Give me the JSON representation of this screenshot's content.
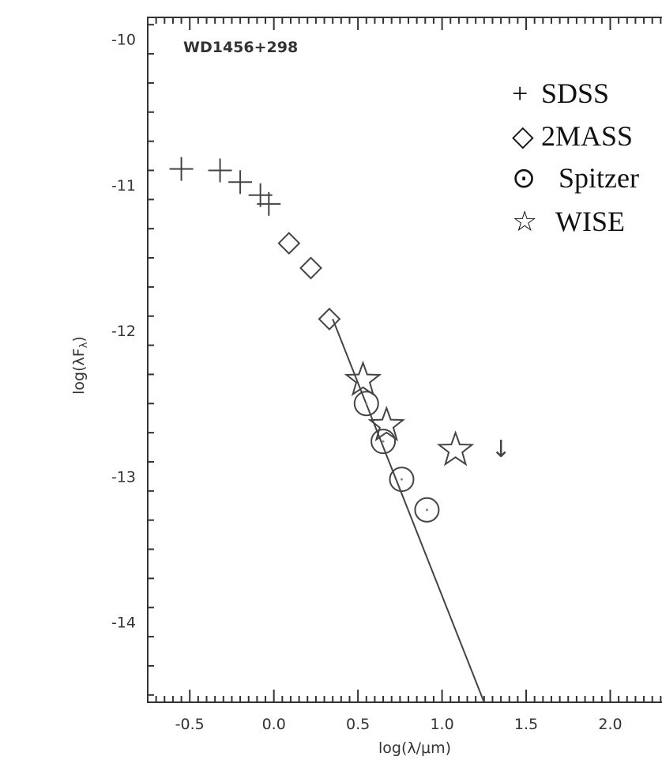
{
  "chart_data": {
    "type": "scatter",
    "annotation": "WD1456+298",
    "xlabel": "log(λ/μm)",
    "ylabel": "log(λF",
    "ylabel_sub": "λ",
    "ylabel_close": ")",
    "xlim": [
      -0.75,
      2.35
    ],
    "ylim": [
      -14.55,
      -9.85
    ],
    "x_ticks": [
      -0.5,
      0.0,
      0.5,
      1.0,
      1.5,
      2.0
    ],
    "x_tick_labels": [
      "-0.5",
      "0.0",
      "0.5",
      "1.0",
      "1.5",
      "2.0"
    ],
    "y_ticks": [
      -10,
      -11,
      -12,
      -13,
      -14
    ],
    "y_tick_labels": [
      "-10",
      "-11",
      "-12",
      "-13",
      "-14"
    ],
    "series": [
      {
        "name": "SDSS",
        "marker": "plus",
        "x": [
          -0.55,
          -0.32,
          -0.2,
          -0.08,
          -0.03
        ],
        "y": [
          -10.89,
          -10.9,
          -10.98,
          -11.07,
          -11.13
        ]
      },
      {
        "name": "2MASS",
        "marker": "diamond",
        "x": [
          0.09,
          0.22,
          0.33
        ],
        "y": [
          -11.4,
          -11.57,
          -11.92
        ]
      },
      {
        "name": "Spitzer",
        "marker": "circle",
        "x": [
          0.55,
          0.65,
          0.76,
          0.91
        ],
        "y": [
          -12.5,
          -12.76,
          -13.02,
          -13.23
        ]
      },
      {
        "name": "WISE",
        "marker": "star",
        "x": [
          0.53,
          0.67,
          1.08
        ],
        "y": [
          -12.34,
          -12.65,
          -12.82
        ]
      }
    ],
    "upper_limit": {
      "x": 1.35,
      "y": -12.82,
      "glyph": "↓"
    },
    "model_line": {
      "x": [
        0.35,
        1.25
      ],
      "y": [
        -11.92,
        -14.55
      ]
    },
    "legend": {
      "placement": "top-right",
      "entries": [
        {
          "glyph": "+",
          "label": "SDSS"
        },
        {
          "glyph": "◇",
          "label": "2MASS"
        },
        {
          "glyph": "⊙",
          "label": "Spitzer"
        },
        {
          "glyph": "☆",
          "label": "WISE"
        }
      ]
    },
    "grid": false
  }
}
